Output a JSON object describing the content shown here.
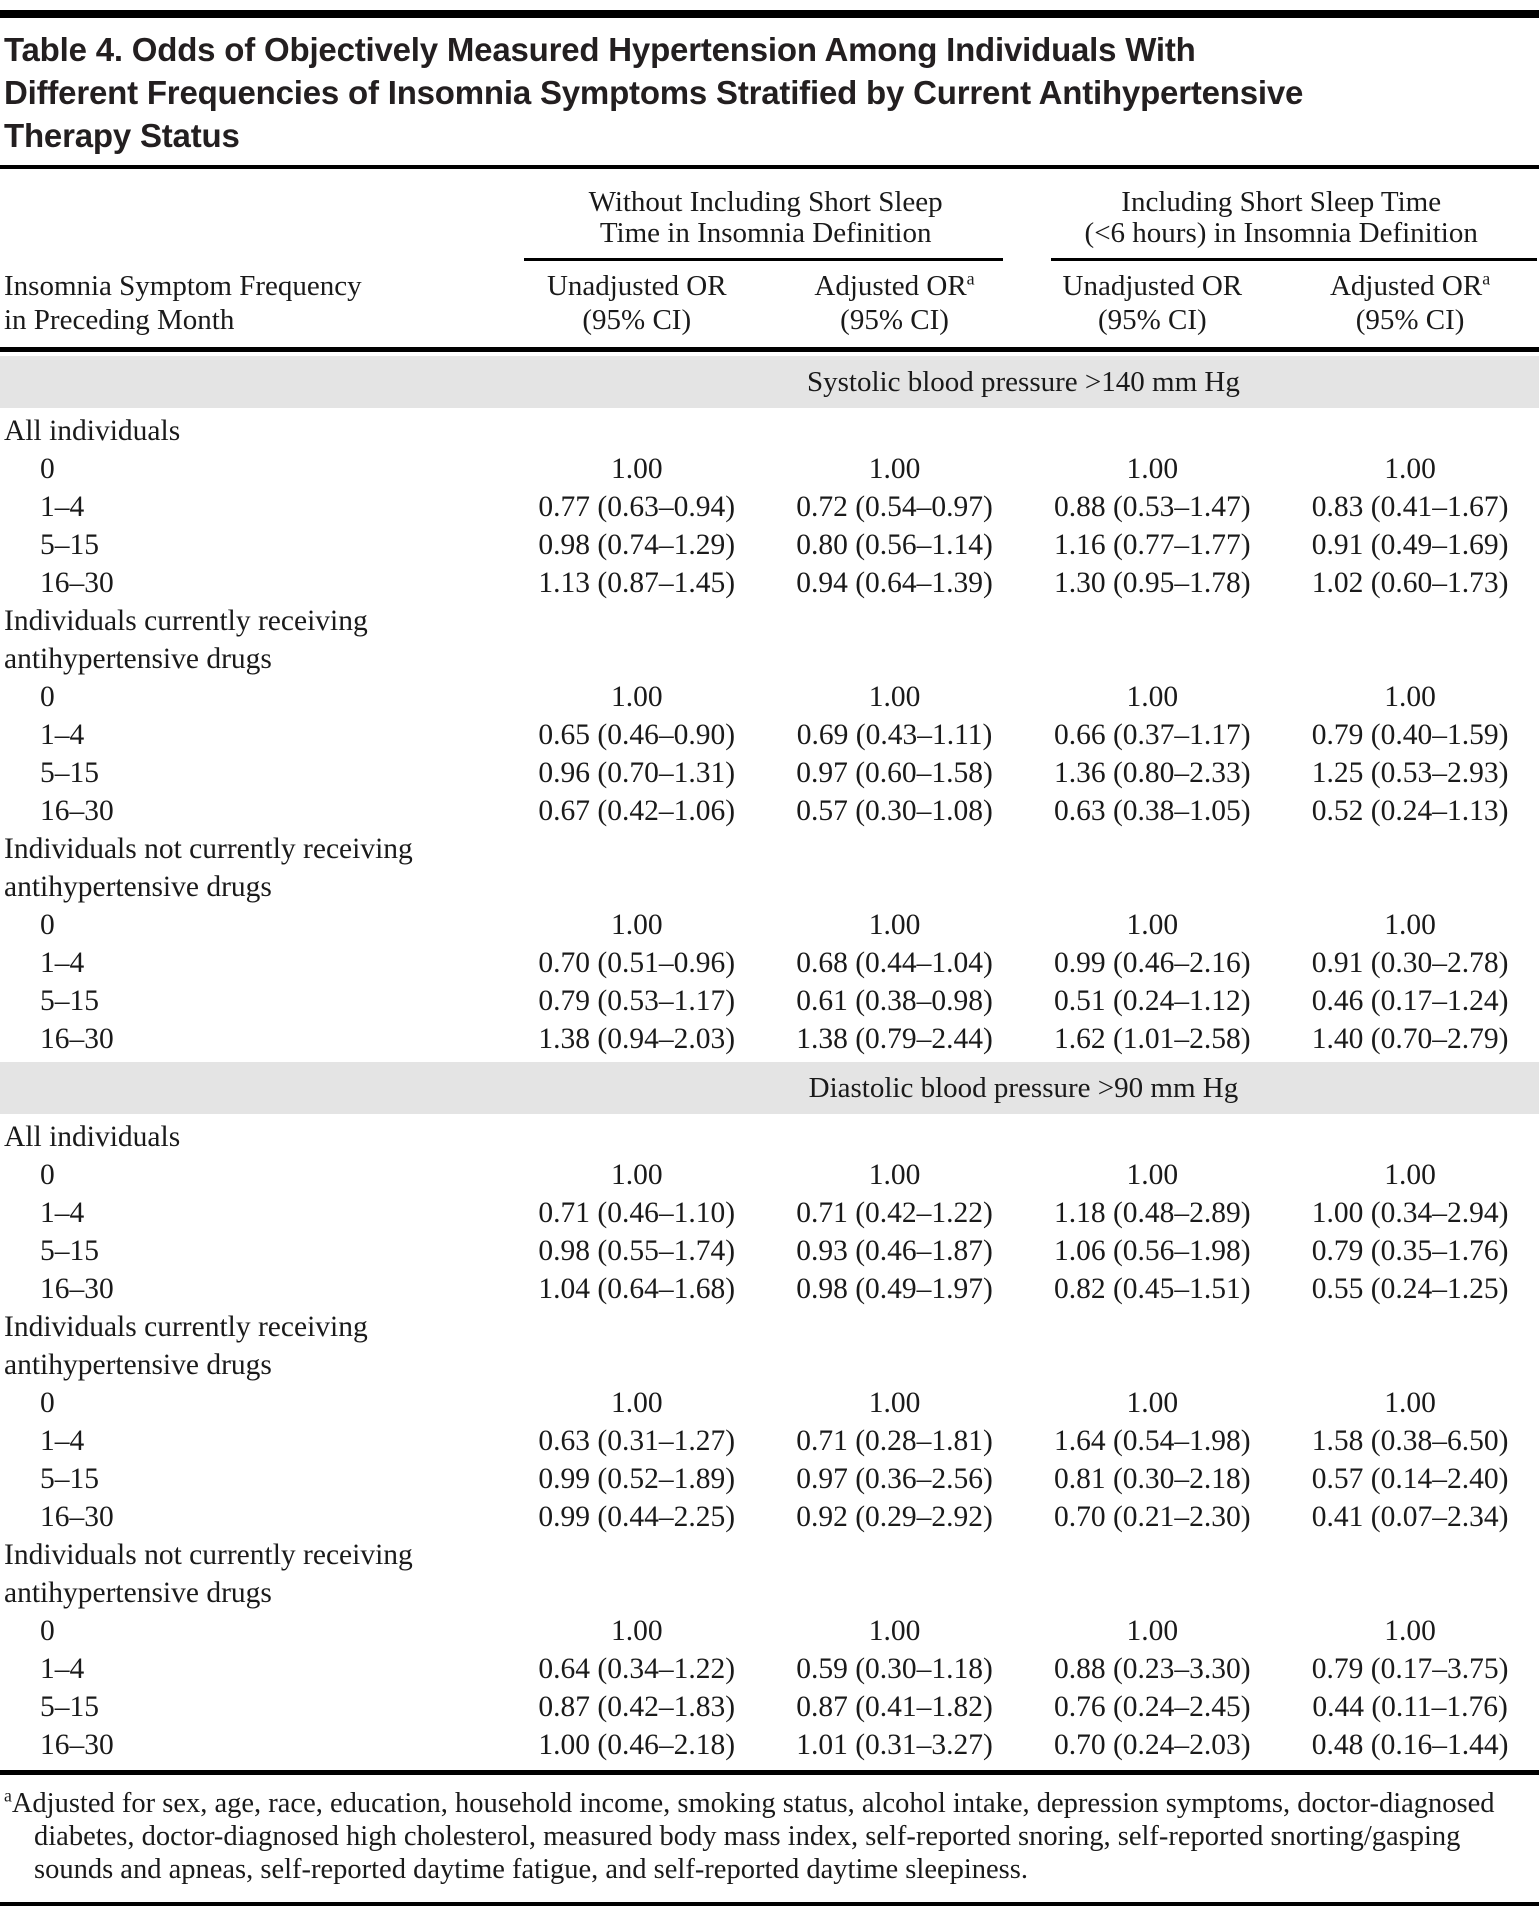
{
  "colors": {
    "band_background": "#e4e4e4",
    "text": "#1a1a1a",
    "rule": "#000000"
  },
  "title": "Table 4. Odds of Objectively Measured Hypertension Among Individuals With Different Frequencies of Insomnia Symptoms Stratified by Current Antihypertensive Therapy Status",
  "header": {
    "stub_line1": "Insomnia Symptom Frequency",
    "stub_line2": "in Preceding Month",
    "col_groups": [
      {
        "label_lines": [
          "Without Including Short Sleep",
          "Time in Insomnia Definition"
        ]
      },
      {
        "label_lines": [
          "Including Short Sleep Time",
          "(<6 hours) in Insomnia Definition"
        ]
      }
    ],
    "columns": [
      {
        "title": "Unadjusted OR",
        "superscript": "",
        "ci_line": "(95% CI)"
      },
      {
        "title": "Adjusted OR",
        "superscript": "a",
        "ci_line": "(95% CI)"
      },
      {
        "title": "Unadjusted OR",
        "superscript": "",
        "ci_line": "(95% CI)"
      },
      {
        "title": "Adjusted OR",
        "superscript": "a",
        "ci_line": "(95% CI)"
      }
    ]
  },
  "sections": [
    {
      "band": "Systolic blood pressure >140 mm Hg",
      "groups": [
        {
          "label_lines": [
            "All individuals"
          ],
          "rows": [
            {
              "freq": "0",
              "values": [
                "1.00",
                "1.00",
                "1.00",
                "1.00"
              ]
            },
            {
              "freq": "1–4",
              "values": [
                "0.77 (0.63–0.94)",
                "0.72 (0.54–0.97)",
                "0.88 (0.53–1.47)",
                "0.83 (0.41–1.67)"
              ]
            },
            {
              "freq": "5–15",
              "values": [
                "0.98 (0.74–1.29)",
                "0.80 (0.56–1.14)",
                "1.16 (0.77–1.77)",
                "0.91 (0.49–1.69)"
              ]
            },
            {
              "freq": "16–30",
              "values": [
                "1.13 (0.87–1.45)",
                "0.94 (0.64–1.39)",
                "1.30 (0.95–1.78)",
                "1.02 (0.60–1.73)"
              ]
            }
          ]
        },
        {
          "label_lines": [
            "Individuals currently receiving",
            "antihypertensive drugs"
          ],
          "rows": [
            {
              "freq": "0",
              "values": [
                "1.00",
                "1.00",
                "1.00",
                "1.00"
              ]
            },
            {
              "freq": "1–4",
              "values": [
                "0.65 (0.46–0.90)",
                "0.69 (0.43–1.11)",
                "0.66 (0.37–1.17)",
                "0.79 (0.40–1.59)"
              ]
            },
            {
              "freq": "5–15",
              "values": [
                "0.96 (0.70–1.31)",
                "0.97 (0.60–1.58)",
                "1.36 (0.80–2.33)",
                "1.25 (0.53–2.93)"
              ]
            },
            {
              "freq": "16–30",
              "values": [
                "0.67 (0.42–1.06)",
                "0.57 (0.30–1.08)",
                "0.63 (0.38–1.05)",
                "0.52 (0.24–1.13)"
              ]
            }
          ]
        },
        {
          "label_lines": [
            "Individuals not currently receiving",
            "antihypertensive drugs"
          ],
          "rows": [
            {
              "freq": "0",
              "values": [
                "1.00",
                "1.00",
                "1.00",
                "1.00"
              ]
            },
            {
              "freq": "1–4",
              "values": [
                "0.70 (0.51–0.96)",
                "0.68 (0.44–1.04)",
                "0.99 (0.46–2.16)",
                "0.91 (0.30–2.78)"
              ]
            },
            {
              "freq": "5–15",
              "values": [
                "0.79 (0.53–1.17)",
                "0.61 (0.38–0.98)",
                "0.51 (0.24–1.12)",
                "0.46 (0.17–1.24)"
              ]
            },
            {
              "freq": "16–30",
              "values": [
                "1.38 (0.94–2.03)",
                "1.38 (0.79–2.44)",
                "1.62 (1.01–2.58)",
                "1.40 (0.70–2.79)"
              ]
            }
          ]
        }
      ]
    },
    {
      "band": "Diastolic blood pressure >90 mm Hg",
      "groups": [
        {
          "label_lines": [
            "All individuals"
          ],
          "rows": [
            {
              "freq": "0",
              "values": [
                "1.00",
                "1.00",
                "1.00",
                "1.00"
              ]
            },
            {
              "freq": "1–4",
              "values": [
                "0.71 (0.46–1.10)",
                "0.71 (0.42–1.22)",
                "1.18 (0.48–2.89)",
                "1.00 (0.34–2.94)"
              ]
            },
            {
              "freq": "5–15",
              "values": [
                "0.98 (0.55–1.74)",
                "0.93 (0.46–1.87)",
                "1.06 (0.56–1.98)",
                "0.79 (0.35–1.76)"
              ]
            },
            {
              "freq": "16–30",
              "values": [
                "1.04 (0.64–1.68)",
                "0.98 (0.49–1.97)",
                "0.82 (0.45–1.51)",
                "0.55 (0.24–1.25)"
              ]
            }
          ]
        },
        {
          "label_lines": [
            "Individuals currently receiving",
            "antihypertensive drugs"
          ],
          "rows": [
            {
              "freq": "0",
              "values": [
                "1.00",
                "1.00",
                "1.00",
                "1.00"
              ]
            },
            {
              "freq": "1–4",
              "values": [
                "0.63 (0.31–1.27)",
                "0.71 (0.28–1.81)",
                "1.64 (0.54–1.98)",
                "1.58 (0.38–6.50)"
              ]
            },
            {
              "freq": "5–15",
              "values": [
                "0.99 (0.52–1.89)",
                "0.97 (0.36–2.56)",
                "0.81 (0.30–2.18)",
                "0.57 (0.14–2.40)"
              ]
            },
            {
              "freq": "16–30",
              "values": [
                "0.99 (0.44–2.25)",
                "0.92 (0.29–2.92)",
                "0.70 (0.21–2.30)",
                "0.41 (0.07–2.34)"
              ]
            }
          ]
        },
        {
          "label_lines": [
            "Individuals not currently receiving",
            "antihypertensive drugs"
          ],
          "rows": [
            {
              "freq": "0",
              "values": [
                "1.00",
                "1.00",
                "1.00",
                "1.00"
              ]
            },
            {
              "freq": "1–4",
              "values": [
                "0.64 (0.34–1.22)",
                "0.59 (0.30–1.18)",
                "0.88 (0.23–3.30)",
                "0.79 (0.17–3.75)"
              ]
            },
            {
              "freq": "5–15",
              "values": [
                "0.87 (0.42–1.83)",
                "0.87 (0.41–1.82)",
                "0.76 (0.24–2.45)",
                "0.44 (0.11–1.76)"
              ]
            },
            {
              "freq": "16–30",
              "values": [
                "1.00 (0.46–2.18)",
                "1.01 (0.31–3.27)",
                "0.70 (0.24–2.03)",
                "0.48 (0.16–1.44)"
              ]
            }
          ]
        }
      ]
    }
  ],
  "footnote": {
    "marker": "a",
    "text": "Adjusted for sex, age, race, education, household income, smoking status, alcohol intake, depression symptoms, doctor-diagnosed diabetes, doctor-diagnosed high cholesterol, measured body mass index, self-reported snoring, self-reported snorting/gasping sounds and apneas, self-reported daytime fatigue, and self-reported daytime sleepiness."
  }
}
